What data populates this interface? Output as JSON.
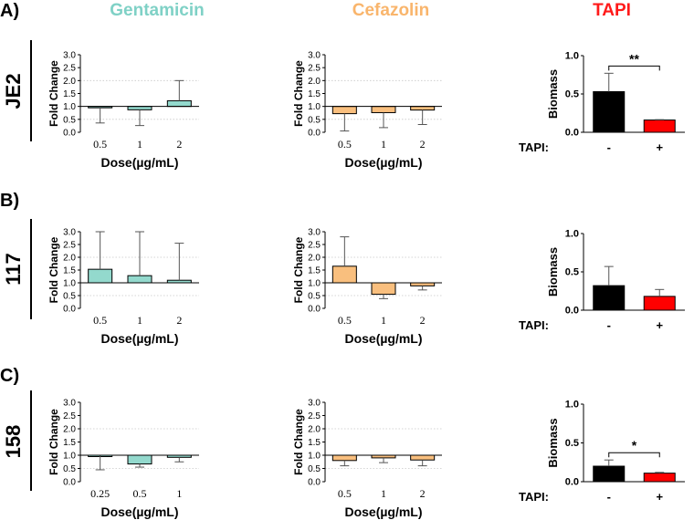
{
  "headers": {
    "gentamicin": {
      "label": "Gentamicin",
      "color": "#7fd1c6"
    },
    "cefazolin": {
      "label": "Cefazolin",
      "color": "#f9b56c"
    },
    "tapi": {
      "label": "TAPI",
      "color": "#ff1a1a"
    }
  },
  "panels": [
    {
      "letter": "A)",
      "strain": "JE2"
    },
    {
      "letter": "B)",
      "strain": "117"
    },
    {
      "letter": "C)",
      "strain": "158"
    }
  ],
  "colors": {
    "gentamicin": "#93d9cd",
    "cefazolin": "#f9bf7e",
    "ctrl": "#000000",
    "tapi": "#ff0000"
  },
  "chart_data": [
    {
      "id": "A-gent",
      "type": "bar",
      "row": 0,
      "col": 0,
      "drug": "gentamicin",
      "ylabel": "Fold Change",
      "xlabel": "Dose(µg/mL)",
      "ylim": [
        0,
        3
      ],
      "yticks": [
        "0.0",
        "0.5",
        "1.0",
        "1.5",
        "2.0",
        "2.5",
        "3.0"
      ],
      "categories": [
        "0.5",
        "1",
        "2"
      ],
      "values": [
        0.95,
        0.87,
        1.22
      ],
      "errors": [
        0.36,
        0.26,
        2.0
      ]
    },
    {
      "id": "A-cef",
      "type": "bar",
      "row": 0,
      "col": 1,
      "drug": "cefazolin",
      "ylabel": "Fold Change",
      "xlabel": "Dose(µg/mL)",
      "ylim": [
        0,
        3
      ],
      "yticks": [
        "0.0",
        "0.5",
        "1.0",
        "1.5",
        "2.0",
        "2.5",
        "3.0"
      ],
      "categories": [
        "0.5",
        "1",
        "2"
      ],
      "values": [
        0.72,
        0.76,
        0.86
      ],
      "errors": [
        0.05,
        0.18,
        0.3
      ]
    },
    {
      "id": "A-tapi",
      "type": "bar",
      "row": 0,
      "col": 2,
      "ylabel": "Biomass",
      "xlabel": "TAPI:",
      "ylim": [
        0,
        1
      ],
      "yticks": [
        "0.0",
        "0.5",
        "1.0"
      ],
      "categories": [
        "-",
        "+"
      ],
      "values": [
        0.53,
        0.16
      ],
      "errors": [
        0.77,
        0.165
      ],
      "significance": "**"
    },
    {
      "id": "B-gent",
      "type": "bar",
      "row": 1,
      "col": 0,
      "drug": "gentamicin",
      "ylabel": "Fold Change",
      "xlabel": "Dose(µg/mL)",
      "ylim": [
        0,
        3
      ],
      "yticks": [
        "0.0",
        "0.5",
        "1.0",
        "1.5",
        "2.0",
        "2.5",
        "3.0"
      ],
      "categories": [
        "0.5",
        "1",
        "2"
      ],
      "values": [
        1.53,
        1.28,
        1.1
      ],
      "errors": [
        3.0,
        3.0,
        2.55
      ]
    },
    {
      "id": "B-cef",
      "type": "bar",
      "row": 1,
      "col": 1,
      "drug": "cefazolin",
      "ylabel": "Fold Change",
      "xlabel": "Dose(µg/mL)",
      "ylim": [
        0,
        3
      ],
      "yticks": [
        "0.0",
        "0.5",
        "1.0",
        "1.5",
        "2.0",
        "2.5",
        "3.0"
      ],
      "categories": [
        "0.5",
        "1",
        "2"
      ],
      "values": [
        1.65,
        0.55,
        0.88
      ],
      "errors": [
        2.8,
        0.38,
        0.72
      ]
    },
    {
      "id": "B-tapi",
      "type": "bar",
      "row": 1,
      "col": 2,
      "ylabel": "Biomass",
      "xlabel": "TAPI:",
      "ylim": [
        0,
        1
      ],
      "yticks": [
        "0.0",
        "0.5",
        "1.0"
      ],
      "categories": [
        "-",
        "+"
      ],
      "values": [
        0.32,
        0.18
      ],
      "errors": [
        0.57,
        0.27
      ]
    },
    {
      "id": "C-gent",
      "type": "bar",
      "row": 2,
      "col": 0,
      "drug": "gentamicin",
      "ylabel": "Fold Change",
      "xlabel": "Dose(µg/mL)",
      "ylim": [
        0,
        3
      ],
      "yticks": [
        "0.0",
        "0.5",
        "1.0",
        "1.5",
        "2.0",
        "2.5",
        "3.0"
      ],
      "categories": [
        "0.25",
        "0.5",
        "1"
      ],
      "values": [
        1.0,
        0.67,
        0.92
      ],
      "errors": [
        0.45,
        0.55,
        0.75
      ]
    },
    {
      "id": "C-cef",
      "type": "bar",
      "row": 2,
      "col": 1,
      "drug": "cefazolin",
      "ylabel": "Fold Change",
      "xlabel": "Dose(µg/mL)",
      "ylim": [
        0,
        3
      ],
      "yticks": [
        "0.0",
        "0.5",
        "1.0",
        "1.5",
        "2.0",
        "2.5",
        "3.0"
      ],
      "categories": [
        "0.5",
        "1",
        "2"
      ],
      "values": [
        0.8,
        0.9,
        0.82
      ],
      "errors": [
        0.6,
        0.72,
        0.6
      ]
    },
    {
      "id": "C-tapi",
      "type": "bar",
      "row": 2,
      "col": 2,
      "ylabel": "Biomass",
      "xlabel": "TAPI:",
      "ylim": [
        0,
        1
      ],
      "yticks": [
        "0.0",
        "0.5",
        "1.0"
      ],
      "categories": [
        "-",
        "+"
      ],
      "values": [
        0.2,
        0.11
      ],
      "errors": [
        0.28,
        0.12
      ],
      "significance": "*"
    }
  ]
}
